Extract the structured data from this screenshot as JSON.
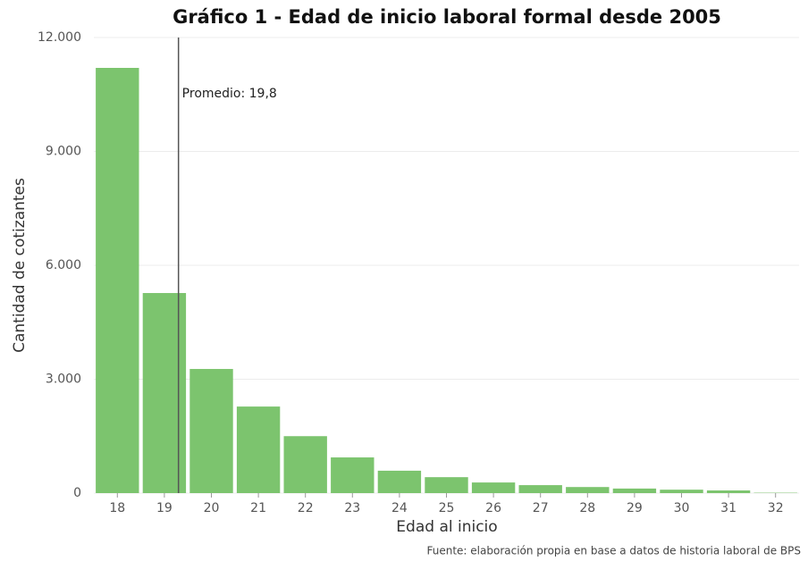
{
  "chart_data": {
    "type": "bar",
    "title": "Gráfico 1 - Edad de inicio laboral formal desde 2005",
    "x_label": "Edad al inicio",
    "y_label": "Cantidad de cotizantes",
    "source": "Fuente: elaboración propia en base a datos de historia laboral de BPS",
    "categories": [
      "18",
      "19",
      "20",
      "21",
      "22",
      "23",
      "24",
      "25",
      "26",
      "27",
      "28",
      "29",
      "30",
      "31",
      "32"
    ],
    "values": [
      11200,
      5270,
      3270,
      2280,
      1500,
      940,
      590,
      420,
      280,
      210,
      160,
      120,
      90,
      70,
      10
    ],
    "color": "#7cc46e",
    "ylim": [
      0,
      12000
    ],
    "yticks": [
      0,
      {
        "value": 3000,
        "label": "3.000"
      },
      {
        "value": 6000,
        "label": "6.000"
      },
      {
        "value": 9000,
        "label": "9.000"
      },
      {
        "value": 12000,
        "label": "12.000"
      }
    ],
    "grid": true,
    "mean_line": {
      "value": 19.8,
      "label": "Promedio: 19,8"
    }
  }
}
